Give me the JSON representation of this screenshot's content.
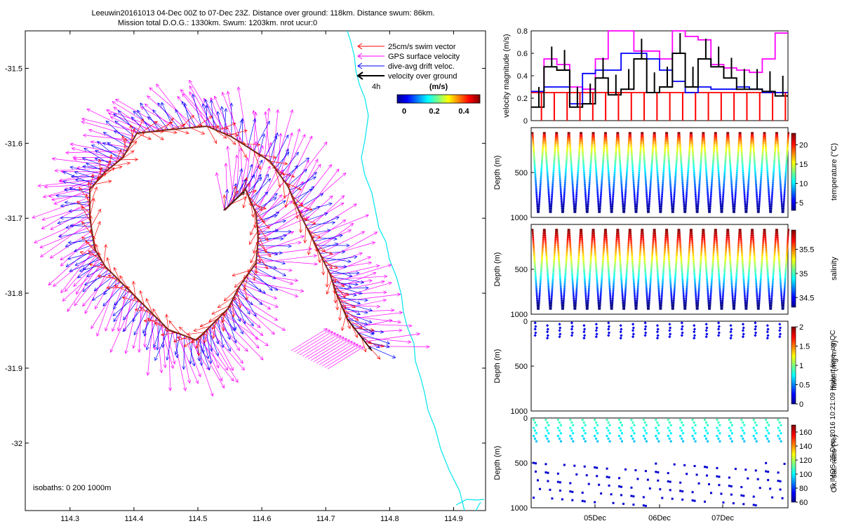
{
  "header": {
    "line1": "Leeuwin20161013 04-Dec 00Z to 07-Dec 23Z. Distance over ground: 118km. Distance swum: 86km.",
    "line2": "Mission total D.O.G.: 1330km. Swum: 1203km. nrot ucur:0"
  },
  "map": {
    "x_ticks": [
      "114.3",
      "114.4",
      "114.5",
      "114.6",
      "114.7",
      "114.8",
      "114.9"
    ],
    "y_ticks": [
      "-31.5",
      "-31.6",
      "-31.7",
      "-31.8",
      "-31.9",
      "-32"
    ],
    "xlim": [
      114.23,
      114.95
    ],
    "ylim": [
      -32.09,
      -31.45
    ],
    "isobath_label": "isobaths: 0   200  1000m",
    "legend": [
      {
        "label": "25cm/s swim vector",
        "color": "#ff0000"
      },
      {
        "label": "GPS surface velocity",
        "color": "#ff00ff"
      },
      {
        "label": "dive-avg drift veloc.",
        "color": "#0000ff"
      },
      {
        "label": "velocity over ground",
        "color": "#000000"
      }
    ],
    "legend_extra": "4h",
    "colorbar": {
      "title": "(m/s)",
      "ticks": [
        "0",
        "0.2",
        "0.4"
      ]
    }
  },
  "colors": {
    "swim": "#ff0000",
    "gps": "#ff00ff",
    "drift": "#0000ff",
    "ground": "#000000",
    "coast": "#00e5ee"
  },
  "chart_data": [
    {
      "type": "line",
      "title": "velocity magnitude",
      "ylabel": "velocity magnitude (m/s)",
      "ylim": [
        0,
        0.8
      ],
      "y_ticks": [
        "0",
        "0.2",
        "0.4",
        "0.6",
        "0.8"
      ],
      "series": [
        {
          "name": "swim",
          "color": "#ff0000",
          "values": [
            0.25,
            0.25,
            0.25,
            0.25,
            0.25,
            0.25,
            0.25,
            0.25,
            0.25,
            0.25,
            0.25,
            0.25,
            0.25,
            0.25,
            0.25,
            0.25,
            0.25,
            0.25,
            0.25,
            0.25
          ]
        },
        {
          "name": "GPS surface",
          "color": "#ff00ff",
          "values": [
            0.26,
            0.55,
            0.5,
            0.3,
            0.28,
            0.55,
            0.8,
            0.8,
            0.62,
            0.62,
            0.55,
            0.8,
            0.75,
            0.72,
            0.5,
            0.47,
            0.45,
            0.43,
            0.55,
            0.78
          ]
        },
        {
          "name": "dive-avg drift",
          "color": "#0000ff",
          "values": [
            0.26,
            0.3,
            0.3,
            0.15,
            0.42,
            0.45,
            0.45,
            0.6,
            0.6,
            0.55,
            0.45,
            0.35,
            0.25,
            0.3,
            0.28,
            0.28,
            0.3,
            0.28,
            0.25,
            0.25
          ]
        },
        {
          "name": "over ground",
          "color": "#000000",
          "values": [
            0.12,
            0.48,
            0.45,
            0.12,
            0.15,
            0.38,
            0.23,
            0.28,
            0.55,
            0.25,
            0.3,
            0.6,
            0.3,
            0.55,
            0.48,
            0.38,
            0.28,
            0.28,
            0.26,
            0.22
          ]
        }
      ]
    },
    {
      "type": "scatter",
      "variable": "temperature",
      "cbar_label": "temperature (°C)",
      "ylabel": "Depth (m)",
      "ylim": [
        1000,
        0
      ],
      "y_ticks": [
        "500",
        "1000"
      ],
      "cbar_range": [
        3,
        23
      ],
      "cbar_ticks": [
        "5",
        "10",
        "15",
        "20"
      ],
      "profiles": 42
    },
    {
      "type": "scatter",
      "variable": "salinity",
      "cbar_label": "salinity",
      "ylabel": "Depth (m)",
      "ylim": [
        1000,
        0
      ],
      "y_ticks": [
        "500",
        "1000"
      ],
      "cbar_range": [
        34.3,
        35.9
      ],
      "cbar_ticks": [
        "34.5",
        "35",
        "35.5"
      ],
      "profiles": 42
    },
    {
      "type": "scatter",
      "variable": "fluorescence",
      "cbar_label": "fluor. (mg m-3)",
      "ylabel": "Depth (m)",
      "ylim": [
        1000,
        0
      ],
      "y_ticks": [
        "0",
        "500",
        "1000"
      ],
      "cbar_range": [
        0,
        2
      ],
      "cbar_ticks": [
        "0",
        "0.5",
        "1",
        "1.5",
        "2"
      ],
      "profiles": 21
    },
    {
      "type": "scatter",
      "variable": "oxygen",
      "cbar_label": "Ox. sat. ratio (%)",
      "ylabel": "Depth (m)",
      "ylim": [
        1000,
        0
      ],
      "y_ticks": [
        "0",
        "500",
        "1000"
      ],
      "cbar_range": [
        60,
        170
      ],
      "cbar_ticks": [
        "60",
        "80",
        "100",
        "120",
        "140",
        "160"
      ],
      "profiles": 21
    }
  ],
  "time_axis": {
    "labels": [
      "05Dec",
      "06Dec",
      "07Dec"
    ]
  },
  "credit": "© IMOS 25-Dec-2016 10:21:09 Hobart time. no QC"
}
